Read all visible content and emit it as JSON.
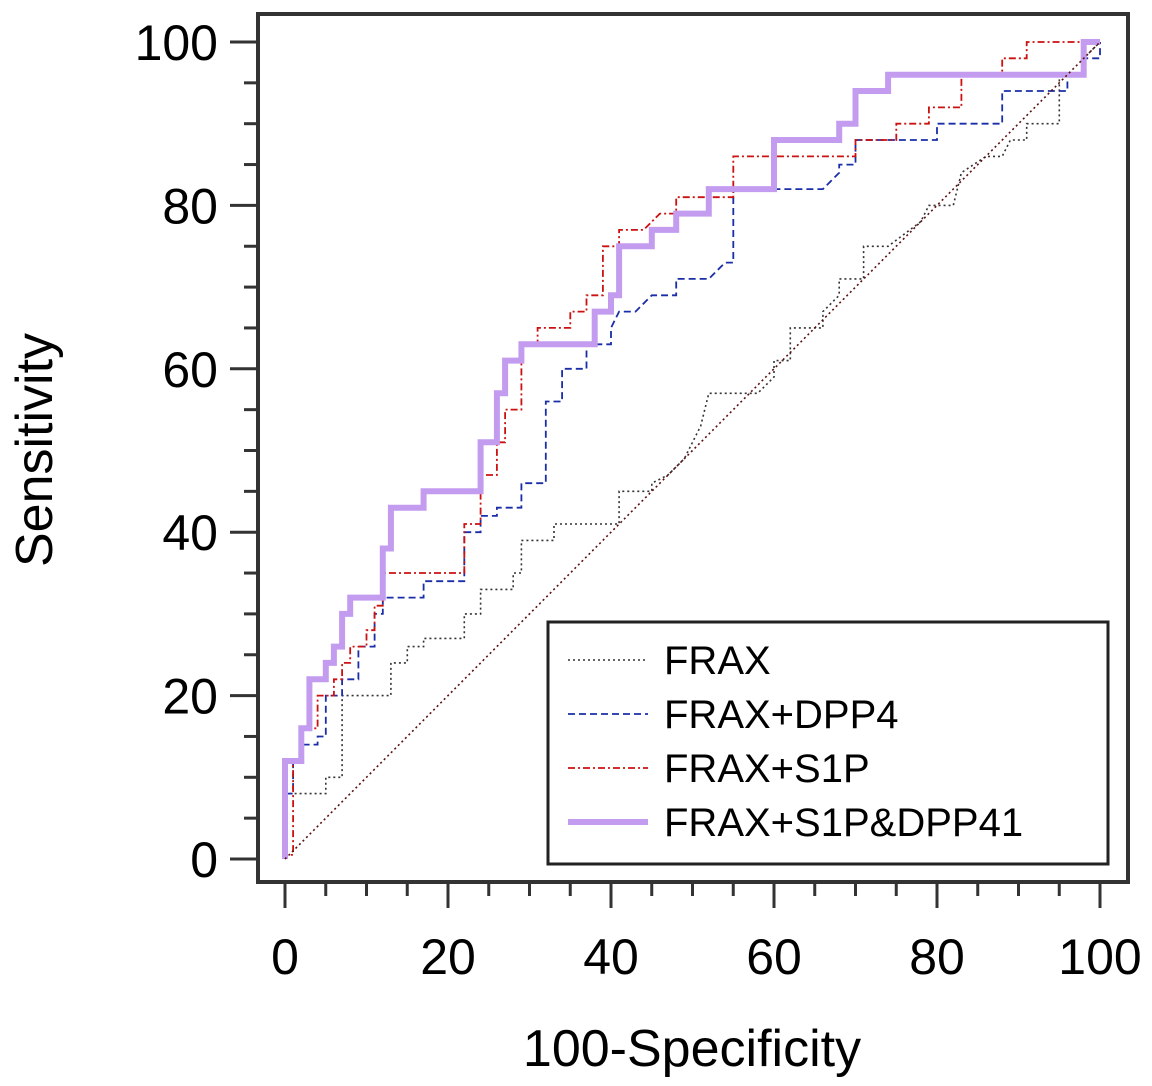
{
  "chart_data": {
    "type": "line",
    "title": "",
    "xlabel": "100-Specificity",
    "ylabel": "Sensitivity",
    "xlim": [
      0,
      100
    ],
    "ylim": [
      0,
      100
    ],
    "xticks": [
      0,
      20,
      40,
      60,
      80,
      100
    ],
    "yticks": [
      0,
      20,
      40,
      60,
      80,
      100
    ],
    "grid": false,
    "legend_position": "bottom-right",
    "series": [
      {
        "name": "FRAX",
        "color": "#333333",
        "style": "dotted",
        "points": [
          [
            0,
            0
          ],
          [
            0,
            8
          ],
          [
            2,
            8
          ],
          [
            2,
            8
          ],
          [
            5,
            8
          ],
          [
            5,
            10
          ],
          [
            7,
            10
          ],
          [
            7,
            20
          ],
          [
            13,
            20
          ],
          [
            13,
            24
          ],
          [
            15,
            24
          ],
          [
            15,
            26
          ],
          [
            17,
            26
          ],
          [
            17,
            27
          ],
          [
            22,
            27
          ],
          [
            22,
            30
          ],
          [
            24,
            30
          ],
          [
            24,
            33
          ],
          [
            26,
            33
          ],
          [
            28,
            33
          ],
          [
            28,
            35
          ],
          [
            29,
            35
          ],
          [
            29,
            39
          ],
          [
            33,
            39
          ],
          [
            33,
            41
          ],
          [
            41,
            41
          ],
          [
            41,
            45
          ],
          [
            45,
            45
          ],
          [
            45,
            46
          ],
          [
            47,
            47
          ],
          [
            49,
            49
          ],
          [
            51,
            53
          ],
          [
            52,
            57
          ],
          [
            58,
            57
          ],
          [
            60,
            59
          ],
          [
            60,
            61
          ],
          [
            62,
            61
          ],
          [
            62,
            65
          ],
          [
            66,
            65
          ],
          [
            66,
            67
          ],
          [
            68,
            69
          ],
          [
            68,
            71
          ],
          [
            71,
            71
          ],
          [
            71,
            75
          ],
          [
            74,
            75
          ],
          [
            78,
            78
          ],
          [
            79,
            80
          ],
          [
            82,
            80
          ],
          [
            83,
            84
          ],
          [
            86,
            86
          ],
          [
            88,
            86
          ],
          [
            89,
            88
          ],
          [
            91,
            88
          ],
          [
            91,
            90
          ],
          [
            95,
            90
          ],
          [
            95,
            96
          ],
          [
            98,
            96
          ],
          [
            98,
            98
          ],
          [
            100,
            100
          ]
        ]
      },
      {
        "name": "FRAX+DPP4",
        "color": "#1a2ea8",
        "style": "dashed",
        "points": [
          [
            0,
            0
          ],
          [
            0,
            8
          ],
          [
            1,
            8
          ],
          [
            1,
            12
          ],
          [
            2,
            12
          ],
          [
            2,
            14
          ],
          [
            4,
            14
          ],
          [
            4,
            15
          ],
          [
            5,
            15
          ],
          [
            5,
            20
          ],
          [
            7,
            20
          ],
          [
            7,
            22
          ],
          [
            9,
            22
          ],
          [
            9,
            26
          ],
          [
            11,
            26
          ],
          [
            11,
            30
          ],
          [
            12,
            30
          ],
          [
            12,
            32
          ],
          [
            17,
            32
          ],
          [
            17,
            34
          ],
          [
            22,
            34
          ],
          [
            22,
            40
          ],
          [
            24,
            40
          ],
          [
            24,
            42
          ],
          [
            26,
            42
          ],
          [
            26,
            43
          ],
          [
            29,
            43
          ],
          [
            29,
            46
          ],
          [
            32,
            46
          ],
          [
            32,
            56
          ],
          [
            34,
            56
          ],
          [
            34,
            60
          ],
          [
            37,
            60
          ],
          [
            37,
            63
          ],
          [
            40,
            63
          ],
          [
            40,
            65
          ],
          [
            41,
            67
          ],
          [
            43,
            67
          ],
          [
            45,
            69
          ],
          [
            48,
            69
          ],
          [
            48,
            71
          ],
          [
            52,
            71
          ],
          [
            54,
            73
          ],
          [
            55,
            73
          ],
          [
            55,
            82
          ],
          [
            66,
            82
          ],
          [
            68,
            84
          ],
          [
            68,
            85
          ],
          [
            70,
            85
          ],
          [
            70,
            88
          ],
          [
            80,
            88
          ],
          [
            80,
            90
          ],
          [
            88,
            90
          ],
          [
            88,
            94
          ],
          [
            96,
            94
          ],
          [
            96,
            96
          ],
          [
            98,
            96
          ],
          [
            98,
            98
          ],
          [
            100,
            98
          ],
          [
            100,
            100
          ]
        ]
      },
      {
        "name": "FRAX+S1P",
        "color": "#cc1111",
        "style": "dashdot",
        "points": [
          [
            0,
            0
          ],
          [
            0,
            0.5
          ],
          [
            1,
            0.5
          ],
          [
            1,
            12
          ],
          [
            2,
            12
          ],
          [
            2,
            16
          ],
          [
            4,
            16
          ],
          [
            4,
            20
          ],
          [
            6,
            20
          ],
          [
            6,
            22
          ],
          [
            7,
            22
          ],
          [
            7,
            24
          ],
          [
            8,
            24
          ],
          [
            8,
            26
          ],
          [
            10,
            26
          ],
          [
            10,
            28
          ],
          [
            11,
            28
          ],
          [
            11,
            31
          ],
          [
            12,
            31
          ],
          [
            12,
            35
          ],
          [
            22,
            35
          ],
          [
            22,
            41
          ],
          [
            24,
            41
          ],
          [
            24,
            47
          ],
          [
            26,
            47
          ],
          [
            26,
            51
          ],
          [
            27,
            51
          ],
          [
            27,
            55
          ],
          [
            29,
            55
          ],
          [
            29,
            63
          ],
          [
            31,
            63
          ],
          [
            31,
            65
          ],
          [
            35,
            65
          ],
          [
            35,
            67
          ],
          [
            37,
            67
          ],
          [
            37,
            69
          ],
          [
            39,
            69
          ],
          [
            39,
            75
          ],
          [
            41,
            75
          ],
          [
            41,
            77
          ],
          [
            44,
            77
          ],
          [
            46,
            79
          ],
          [
            48,
            79
          ],
          [
            48,
            81
          ],
          [
            55,
            81
          ],
          [
            55,
            86
          ],
          [
            70,
            86
          ],
          [
            70,
            88
          ],
          [
            75,
            88
          ],
          [
            75,
            90
          ],
          [
            79,
            90
          ],
          [
            79,
            92
          ],
          [
            83,
            92
          ],
          [
            83,
            96
          ],
          [
            88,
            96
          ],
          [
            88,
            98
          ],
          [
            91,
            98
          ],
          [
            91,
            100
          ],
          [
            100,
            100
          ]
        ]
      },
      {
        "name": "FRAX+S1P&DPP41",
        "color": "#c39cf0",
        "style": "solid",
        "points": [
          [
            0,
            0
          ],
          [
            0,
            12
          ],
          [
            2,
            12
          ],
          [
            2,
            16
          ],
          [
            3,
            16
          ],
          [
            3,
            22
          ],
          [
            5,
            22
          ],
          [
            5,
            24
          ],
          [
            6,
            24
          ],
          [
            6,
            26
          ],
          [
            7,
            26
          ],
          [
            7,
            30
          ],
          [
            8,
            30
          ],
          [
            8,
            32
          ],
          [
            12,
            32
          ],
          [
            12,
            38
          ],
          [
            13,
            38
          ],
          [
            13,
            43
          ],
          [
            17,
            43
          ],
          [
            17,
            45
          ],
          [
            24,
            45
          ],
          [
            24,
            51
          ],
          [
            26,
            51
          ],
          [
            26,
            57
          ],
          [
            27,
            57
          ],
          [
            27,
            61
          ],
          [
            29,
            61
          ],
          [
            29,
            63
          ],
          [
            38,
            63
          ],
          [
            38,
            67
          ],
          [
            40,
            67
          ],
          [
            40,
            69
          ],
          [
            41,
            69
          ],
          [
            41,
            75
          ],
          [
            45,
            75
          ],
          [
            45,
            77
          ],
          [
            48,
            77
          ],
          [
            48,
            79
          ],
          [
            52,
            79
          ],
          [
            52,
            82
          ],
          [
            60,
            82
          ],
          [
            60,
            88
          ],
          [
            66,
            88
          ],
          [
            68,
            88
          ],
          [
            68,
            90
          ],
          [
            70,
            90
          ],
          [
            70,
            94
          ],
          [
            74,
            94
          ],
          [
            74,
            96
          ],
          [
            98,
            96
          ],
          [
            98,
            100
          ],
          [
            100,
            100
          ]
        ]
      },
      {
        "name": "",
        "color": "#5a1010",
        "style": "dotted",
        "points": [
          [
            0,
            0
          ],
          [
            100,
            100
          ]
        ]
      }
    ]
  }
}
